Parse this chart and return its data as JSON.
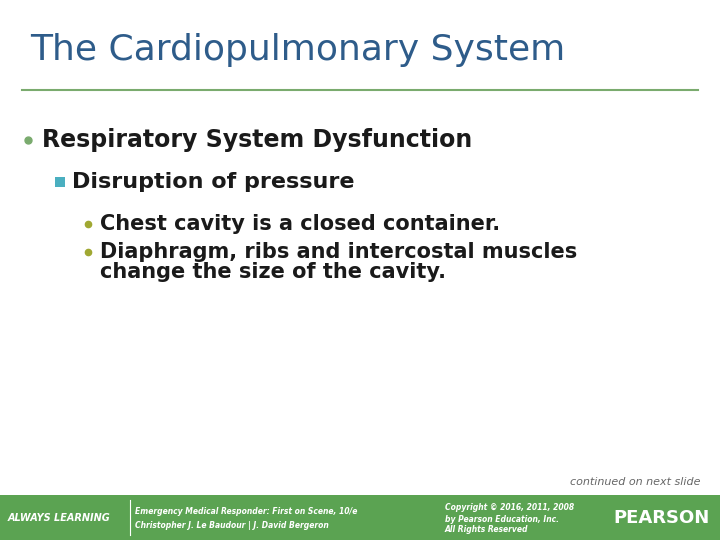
{
  "title": "The Cardiopulmonary System",
  "title_color": "#2E5C8A",
  "title_fontsize": 26,
  "bg_color": "#FFFFFF",
  "separator_color": "#7AAB6E",
  "bullet1_text": "Respiratory System Dysfunction",
  "bullet1_bullet_color": "#7AAB6E",
  "bullet1_fontsize": 17,
  "bullet2_text": "Disruption of pressure",
  "bullet2_bullet_color": "#4AAFC0",
  "bullet2_fontsize": 16,
  "bullet3a_text": "Chest cavity is a closed container.",
  "bullet3a_bullet_color": "#A0A832",
  "bullet3a_fontsize": 15,
  "bullet3b_line1": "Diaphragm, ribs and intercostal muscles",
  "bullet3b_line2": "change the size of the cavity.",
  "bullet3b_bullet_color": "#A0A832",
  "bullet3b_fontsize": 15,
  "footer_bg_color": "#5BA352",
  "footer_text_left1": "Emergency Medical Responder: First on Scene, 10/e",
  "footer_text_left2": "Christopher J. Le Baudour | J. David Bergeron",
  "footer_text_right1": "Copyright © 2016, 2011, 2008",
  "footer_text_right2": "by Pearson Education, Inc.",
  "footer_text_right3": "All Rights Reserved",
  "always_learning_text": "ALWAYS LEARNING",
  "pearson_text": "PEARSON",
  "continued_text": "continued on next slide",
  "continued_color": "#666666",
  "continued_fontsize": 8
}
